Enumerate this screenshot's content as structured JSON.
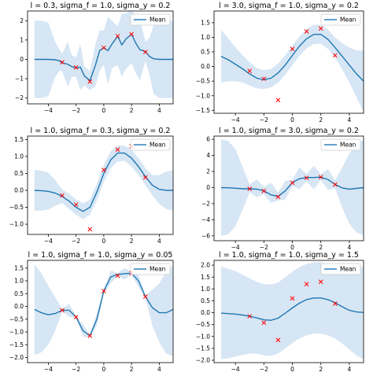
{
  "chart_data": [
    {
      "type": "line",
      "title": "l = 0.3, sigma_f = 1.0, sigma_y = 0.2",
      "xlim": [
        -5.5,
        5
      ],
      "ylim": [
        -2.3,
        2.5
      ],
      "xticks": [
        -4,
        -2,
        0,
        2,
        4
      ],
      "yticks": [
        -2,
        -1,
        0,
        1,
        2
      ],
      "legend": "top-right",
      "series": [
        {
          "name": "Mean",
          "x": [
            -5,
            -4.5,
            -4,
            -3.5,
            -3.2,
            -3,
            -2.6,
            -2.3,
            -2,
            -1.7,
            -1.4,
            -1,
            -0.6,
            -0.3,
            0,
            0.3,
            0.6,
            1,
            1.3,
            1.6,
            2,
            2.3,
            2.6,
            3,
            3.3,
            3.6,
            4,
            4.5,
            5
          ],
          "y": [
            0,
            0,
            0,
            -0.02,
            -0.08,
            -0.18,
            -0.25,
            -0.38,
            -0.45,
            -0.4,
            -0.85,
            -1.1,
            -0.3,
            0.45,
            0.6,
            0.45,
            0.8,
            1.2,
            0.75,
            1.05,
            1.3,
            0.85,
            0.5,
            0.4,
            0.15,
            0.03,
            0,
            0,
            0
          ]
        }
      ],
      "band": {
        "x": [
          -5,
          -4.5,
          -4,
          -3.5,
          -3.2,
          -3,
          -2.6,
          -2.3,
          -2,
          -1.7,
          -1.4,
          -1,
          -0.6,
          -0.3,
          0,
          0.3,
          0.6,
          1,
          1.3,
          1.6,
          2,
          2.3,
          2.6,
          3,
          3.3,
          3.6,
          4,
          4.5,
          5
        ],
        "lower": [
          -2,
          -2,
          -1.9,
          -0.9,
          -0.6,
          -0.6,
          -1.4,
          -0.9,
          -0.9,
          -1.6,
          -1.35,
          -1.6,
          -1.4,
          -0.6,
          -0.3,
          -1.3,
          -0.45,
          -0.3,
          -0.9,
          -0.5,
          -0.2,
          -0.7,
          -1.1,
          -0.1,
          -0.8,
          -1.8,
          -2,
          -2,
          -2
        ],
        "upper": [
          2,
          2,
          1.9,
          0.9,
          0.5,
          0.3,
          0.9,
          0.2,
          0.1,
          0.8,
          -0.35,
          -0.6,
          0.8,
          1.5,
          1.5,
          2.2,
          2.0,
          1.7,
          2.35,
          2.4,
          2.55,
          2.3,
          2.1,
          0.9,
          1.1,
          1.8,
          2,
          2,
          2
        ]
      },
      "observations": {
        "x": [
          -3,
          -2,
          -1,
          0,
          1,
          2,
          3
        ],
        "y": [
          -0.15,
          -0.42,
          -1.15,
          0.6,
          1.2,
          1.3,
          0.38
        ]
      },
      "grid": false
    },
    {
      "type": "line",
      "title": "l = 3.0, sigma_f = 1.0, sigma_y = 0.2",
      "xlim": [
        -5.5,
        5
      ],
      "ylim": [
        -1.6,
        1.9
      ],
      "xticks": [
        -4,
        -2,
        0,
        2,
        4
      ],
      "yticks": [
        -1.5,
        -1.0,
        -0.5,
        0.0,
        0.5,
        1.0,
        1.5
      ],
      "legend": "top-right",
      "series": [
        {
          "name": "Mean",
          "x": [
            -5,
            -4.5,
            -4,
            -3.5,
            -3,
            -2.5,
            -2,
            -1.5,
            -1,
            -0.5,
            0,
            0.5,
            1,
            1.5,
            2,
            2.5,
            3,
            3.5,
            4,
            4.5,
            5
          ],
          "y": [
            0.35,
            0.23,
            0.08,
            -0.08,
            -0.25,
            -0.4,
            -0.45,
            -0.4,
            -0.22,
            0.05,
            0.38,
            0.7,
            0.95,
            1.1,
            1.1,
            0.93,
            0.65,
            0.35,
            0.05,
            -0.25,
            -0.5
          ]
        }
      ],
      "band": {
        "x": [
          -5,
          -4.5,
          -4,
          -3.5,
          -3,
          -2.5,
          -2,
          -1.5,
          -1,
          -0.5,
          0,
          0.5,
          1,
          1.5,
          2,
          2.5,
          3,
          3.5,
          4,
          4.5,
          5
        ],
        "lower": [
          -0.55,
          -0.5,
          -0.5,
          -0.55,
          -0.65,
          -0.75,
          -0.77,
          -0.72,
          -0.55,
          -0.28,
          0.05,
          0.37,
          0.62,
          0.77,
          0.78,
          0.6,
          0.3,
          -0.1,
          -0.55,
          -1.05,
          -1.55
        ],
        "upper": [
          1.25,
          0.96,
          0.66,
          0.39,
          0.15,
          -0.05,
          -0.13,
          -0.08,
          0.11,
          0.38,
          0.71,
          1.03,
          1.28,
          1.43,
          1.42,
          1.26,
          1.0,
          0.8,
          0.65,
          0.55,
          0.55
        ]
      },
      "observations": {
        "x": [
          -3,
          -2,
          -1,
          0,
          1,
          2,
          3
        ],
        "y": [
          -0.15,
          -0.42,
          -1.15,
          0.6,
          1.2,
          1.3,
          0.38
        ]
      },
      "grid": false
    },
    {
      "type": "line",
      "title": "l = 1.0, sigma_f = 0.3, sigma_y = 0.2",
      "xlim": [
        -5.5,
        5
      ],
      "ylim": [
        -1.3,
        1.6
      ],
      "xticks": [
        -4,
        -2,
        0,
        2,
        4
      ],
      "yticks": [
        -1.0,
        -0.5,
        0.0,
        0.5,
        1.0,
        1.5
      ],
      "legend": "top-right",
      "series": [
        {
          "name": "Mean",
          "x": [
            -5,
            -4.5,
            -4,
            -3.5,
            -3,
            -2.5,
            -2,
            -1.5,
            -1,
            -0.5,
            0,
            0.5,
            1,
            1.5,
            2,
            2.5,
            3,
            3.5,
            4,
            4.5,
            5
          ],
          "y": [
            0,
            -0.01,
            -0.03,
            -0.08,
            -0.18,
            -0.32,
            -0.5,
            -0.62,
            -0.5,
            -0.05,
            0.5,
            0.9,
            1.1,
            1.1,
            0.95,
            0.7,
            0.4,
            0.15,
            0.03,
            0,
            0
          ]
        }
      ],
      "band": {
        "x": [
          -5,
          -4.5,
          -4,
          -3.5,
          -3,
          -2.5,
          -2,
          -1.5,
          -1,
          -0.5,
          0,
          0.5,
          1,
          1.5,
          2,
          2.5,
          3,
          3.5,
          4,
          4.5,
          5
        ],
        "lower": [
          -0.6,
          -0.6,
          -0.57,
          -0.45,
          -0.38,
          -0.55,
          -0.72,
          -0.85,
          -0.72,
          -0.3,
          0.25,
          0.65,
          0.85,
          0.87,
          0.7,
          0.45,
          0.15,
          -0.15,
          -0.4,
          -0.55,
          -0.6
        ],
        "upper": [
          0.6,
          0.58,
          0.52,
          0.3,
          0.02,
          -0.1,
          -0.27,
          -0.38,
          -0.28,
          0.2,
          0.75,
          1.15,
          1.33,
          1.32,
          1.2,
          0.95,
          0.65,
          0.45,
          0.45,
          0.55,
          0.6
        ]
      },
      "observations": {
        "x": [
          -3,
          -2,
          -1,
          0,
          1,
          2,
          3
        ],
        "y": [
          -0.15,
          -0.42,
          -1.15,
          0.6,
          1.2,
          1.3,
          0.38
        ]
      },
      "grid": false
    },
    {
      "type": "line",
      "title": "l = 1.0, sigma_f = 3.0, sigma_y = 0.2",
      "xlim": [
        -5.5,
        5
      ],
      "ylim": [
        -6.6,
        6.4
      ],
      "xticks": [
        -4,
        -2,
        0,
        2,
        4
      ],
      "yticks": [
        -6,
        -4,
        -2,
        0,
        2,
        4,
        6
      ],
      "legend": "top-right",
      "series": [
        {
          "name": "Mean",
          "x": [
            -5,
            -4.5,
            -4,
            -3.5,
            -3,
            -2.5,
            -2,
            -1.5,
            -1,
            -0.5,
            0,
            0.5,
            1,
            1.5,
            2,
            2.5,
            3,
            3.5,
            4,
            4.5,
            5
          ],
          "y": [
            0,
            -0.02,
            -0.08,
            -0.15,
            -0.15,
            -0.2,
            -0.4,
            -0.9,
            -1.1,
            -0.4,
            0.6,
            1.1,
            1.25,
            1.25,
            1.3,
            1.0,
            0.4,
            -0.05,
            -0.2,
            -0.1,
            0
          ]
        }
      ],
      "band": {
        "x": [
          -5,
          -4.5,
          -4,
          -3.5,
          -3,
          -2.5,
          -2,
          -1.5,
          -1,
          -0.5,
          0,
          0.5,
          1,
          1.5,
          2,
          2.5,
          3,
          3.5,
          4,
          4.5,
          5
        ],
        "lower": [
          -6,
          -5.8,
          -4.8,
          -2.8,
          -0.6,
          -1.2,
          -0.8,
          -1.9,
          -1.6,
          -1.5,
          0.2,
          -0.2,
          0.8,
          -0.2,
          0.9,
          -0.3,
          -0.1,
          -2.5,
          -4.5,
          -5.6,
          -5.9
        ],
        "upper": [
          6,
          5.8,
          4.8,
          2.6,
          0.4,
          1.0,
          0.1,
          0.6,
          -0.6,
          0.8,
          1.0,
          2.5,
          1.7,
          2.7,
          1.7,
          2.3,
          0.9,
          2.5,
          4.2,
          5.4,
          5.9
        ]
      },
      "observations": {
        "x": [
          -3,
          -2,
          -1,
          0,
          1,
          2,
          3
        ],
        "y": [
          -0.15,
          -0.42,
          -1.15,
          0.6,
          1.2,
          1.3,
          0.38
        ]
      },
      "grid": false
    },
    {
      "type": "line",
      "title": "l = 1.0, sigma_f = 1.0, sigma_y = 0.05",
      "xlim": [
        -5.5,
        5
      ],
      "ylim": [
        -2.2,
        1.8
      ],
      "xticks": [
        -4,
        -2,
        0,
        2,
        4
      ],
      "yticks": [
        -2.0,
        -1.5,
        -1.0,
        -0.5,
        0.0,
        0.5,
        1.0,
        1.5
      ],
      "legend": "top-right",
      "series": [
        {
          "name": "Mean",
          "x": [
            -5,
            -4.5,
            -4,
            -3.5,
            -3,
            -2.5,
            -2,
            -1.5,
            -1,
            -0.5,
            0,
            0.5,
            1,
            1.5,
            2,
            2.5,
            3,
            3.5,
            4,
            4.5,
            5
          ],
          "y": [
            -0.12,
            -0.25,
            -0.33,
            -0.28,
            -0.15,
            -0.15,
            -0.42,
            -0.95,
            -1.15,
            -0.5,
            0.6,
            1.15,
            1.25,
            1.28,
            1.3,
            1.0,
            0.38,
            -0.05,
            -0.25,
            -0.25,
            -0.12
          ]
        }
      ],
      "band": {
        "x": [
          -5,
          -4.5,
          -4,
          -3.5,
          -3,
          -2.5,
          -2,
          -1.5,
          -1,
          -0.5,
          0,
          0.5,
          1,
          1.5,
          2,
          2.5,
          3,
          3.5,
          4,
          4.5,
          5
        ],
        "lower": [
          -1.9,
          -1.8,
          -1.5,
          -0.95,
          -0.2,
          -0.4,
          -0.45,
          -1.2,
          -1.2,
          -0.75,
          0.55,
          0.9,
          1.2,
          1.05,
          1.25,
          0.75,
          0.33,
          -0.75,
          -1.4,
          -1.85,
          -1.95
        ],
        "upper": [
          1.65,
          1.3,
          0.8,
          0.35,
          -0.1,
          0.1,
          -0.38,
          -0.7,
          -1.1,
          -0.25,
          0.65,
          1.4,
          1.3,
          1.5,
          1.35,
          1.25,
          0.43,
          0.65,
          0.9,
          1.35,
          1.6
        ]
      },
      "observations": {
        "x": [
          -3,
          -2,
          -1,
          0,
          1,
          2,
          3
        ],
        "y": [
          -0.15,
          -0.42,
          -1.15,
          0.6,
          1.2,
          1.3,
          0.38
        ]
      },
      "grid": false
    },
    {
      "type": "line",
      "title": "l = 1.0, sigma_f = 1.0, sigma_y = 1.5",
      "xlim": [
        -5.5,
        5
      ],
      "ylim": [
        -2.1,
        2.2
      ],
      "xticks": [
        -4,
        -2,
        0,
        2,
        4
      ],
      "yticks": [
        -2.0,
        -1.5,
        -1.0,
        -0.5,
        0.0,
        0.5,
        1.0,
        1.5,
        2.0
      ],
      "legend": "top-right",
      "series": [
        {
          "name": "Mean",
          "x": [
            -5,
            -4.5,
            -4,
            -3.5,
            -3,
            -2.5,
            -2,
            -1.5,
            -1,
            -0.5,
            0,
            0.5,
            1,
            1.5,
            2,
            2.5,
            3,
            3.5,
            4,
            4.5,
            5
          ],
          "y": [
            -0.02,
            -0.04,
            -0.06,
            -0.1,
            -0.15,
            -0.22,
            -0.3,
            -0.32,
            -0.23,
            -0.02,
            0.2,
            0.4,
            0.55,
            0.62,
            0.62,
            0.55,
            0.42,
            0.25,
            0.1,
            0.03,
            0.01
          ]
        }
      ],
      "band": {
        "x": [
          -5,
          -4.5,
          -4,
          -3.5,
          -3,
          -2.5,
          -2,
          -1.5,
          -1,
          -0.5,
          0,
          0.5,
          1,
          1.5,
          2,
          2.5,
          3,
          3.5,
          4,
          4.5,
          5
        ],
        "lower": [
          -1.95,
          -1.92,
          -1.85,
          -1.78,
          -1.72,
          -1.72,
          -1.8,
          -1.82,
          -1.72,
          -1.5,
          -1.28,
          -1.08,
          -0.95,
          -0.88,
          -0.88,
          -0.95,
          -1.08,
          -1.3,
          -1.55,
          -1.8,
          -1.95
        ],
        "upper": [
          1.95,
          1.85,
          1.75,
          1.6,
          1.45,
          1.3,
          1.2,
          1.18,
          1.27,
          1.5,
          1.72,
          1.92,
          2.05,
          2.12,
          2.12,
          2.05,
          1.95,
          1.85,
          1.8,
          1.85,
          1.95
        ]
      },
      "observations": {
        "x": [
          -3,
          -2,
          -1,
          0,
          1,
          2,
          3
        ],
        "y": [
          -0.15,
          -0.42,
          -1.15,
          0.6,
          1.2,
          1.3,
          0.38
        ]
      },
      "grid": false
    }
  ],
  "style": {
    "mean_color": "#1f77b4",
    "band_color": "#d7e6f4",
    "marker_color": "#ff0000",
    "axis_color": "#000000"
  }
}
